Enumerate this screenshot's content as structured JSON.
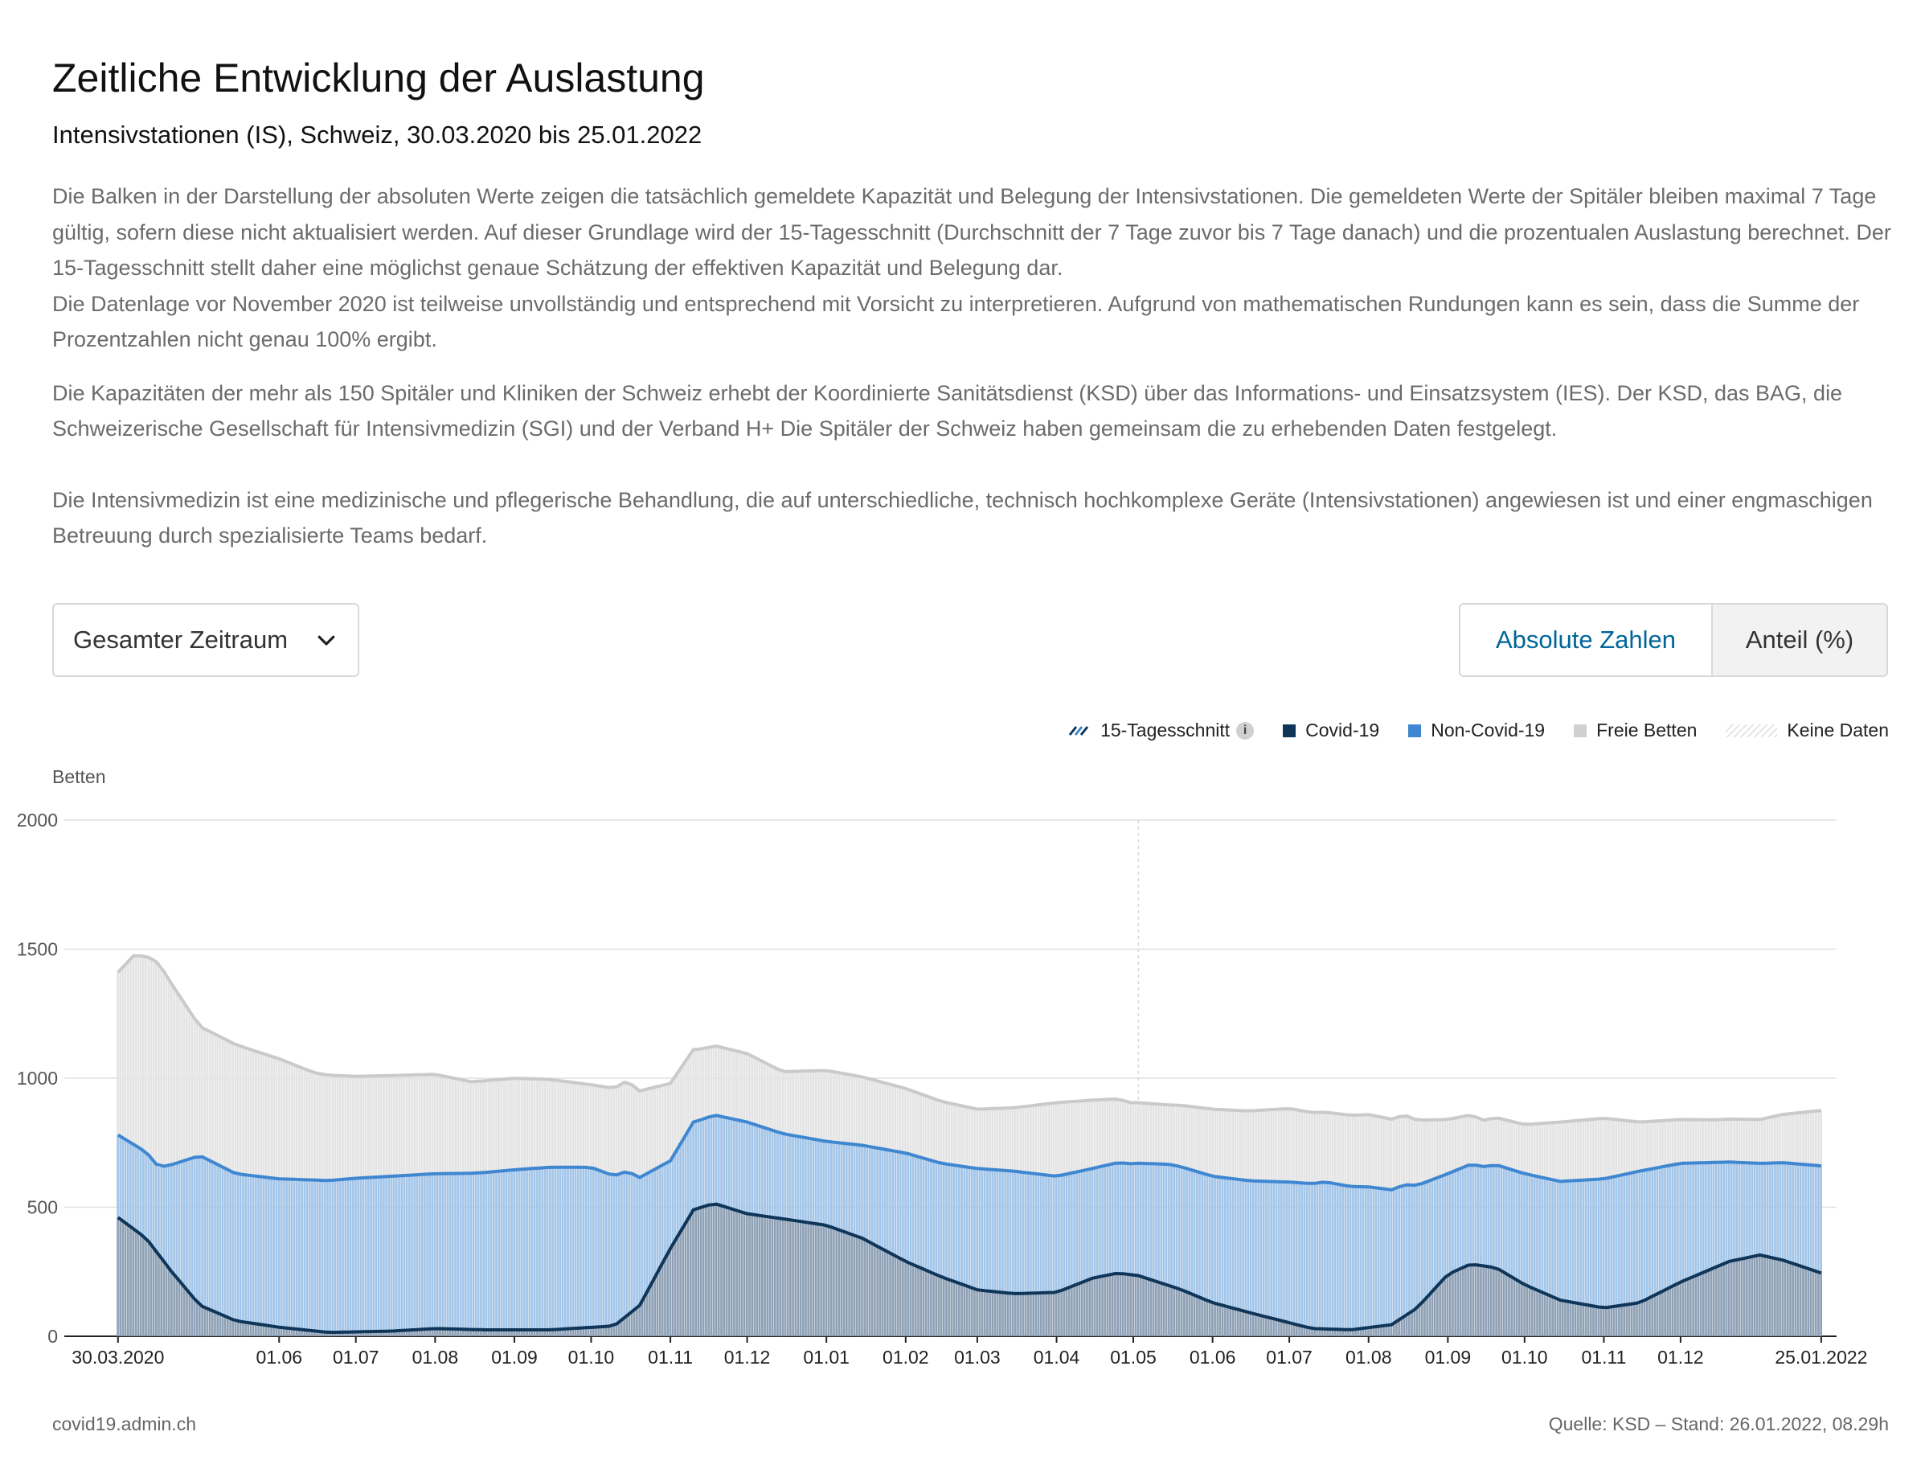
{
  "header": {
    "title": "Zeitliche Entwicklung der Auslastung",
    "subtitle": "Intensivstationen (IS), Schweiz, 30.03.2020 bis 25.01.2022"
  },
  "description": {
    "p1a": "Die Balken in der Darstellung der absoluten Werte zeigen die tatsächlich gemeldete Kapazität und Belegung der Intensivstationen. Die gemeldeten Werte der Spitäler bleiben maximal 7 Tage gültig, sofern diese nicht aktualisiert werden. Auf dieser Grundlage wird der 15-Tagesschnitt (Durchschnitt der 7 Tage zuvor bis 7 Tage danach) und die prozentualen Auslastung berechnet. Der 15-Tagesschnitt stellt daher eine möglichst genaue Schätzung der effektiven Kapazität und Belegung dar.",
    "p1b": "Die Datenlage vor November 2020 ist teilweise unvollständig und entsprechend mit Vorsicht zu interpretieren. Aufgrund von mathematischen Rundungen kann es sein, dass die Summe der Prozentzahlen nicht genau 100% ergibt.",
    "p2": "Die Kapazitäten der mehr als 150 Spitäler und Kliniken der Schweiz erhebt der Koordinierte Sanitätsdienst (KSD) über das Informations- und Einsatzsystem (IES). Der KSD, das BAG, die Schweizerische Gesellschaft für Intensivmedizin (SGI) und der Verband H+ Die Spitäler der Schweiz haben gemeinsam die zu erhebenden Daten festgelegt.",
    "p3": "Die Intensivmedizin ist eine medizinische und pflegerische Behandlung, die auf unterschiedliche, technisch hochkomplexe Geräte (Intensivstationen) angewiesen ist und einer engmaschigen Betreuung durch spezialisierte Teams bedarf."
  },
  "controls": {
    "period_select": "Gesamter Zeitraum",
    "period_icon": "chevron-down-icon",
    "toggle_absolute": "Absolute Zahlen",
    "toggle_share": "Anteil (%)",
    "active_toggle": "Absolute Zahlen"
  },
  "legend": {
    "avg": "15-Tagesschnitt",
    "info_icon": "info-icon",
    "covid": "Covid-19",
    "noncovid": "Non-Covid-19",
    "free": "Freie Betten",
    "nodata": "Keine Daten"
  },
  "colors": {
    "covid": "#0f3659",
    "covid_bar": "#8ea0b5",
    "noncovid": "#3f87d0",
    "noncovid_bar": "#a3c5e8",
    "free_bar": "#e4e4e4",
    "free_line": "#cacaca",
    "grid": "#e0e0e0",
    "accent": "#006699"
  },
  "chart_data": {
    "type": "area",
    "ylabel": "Betten",
    "y_ticks": [
      0,
      500,
      1000,
      1500,
      2000
    ],
    "ylim": [
      0,
      2000
    ],
    "x_range": [
      "2020-03-09",
      "2022-01-31"
    ],
    "x_ticks": [
      {
        "date": "2020-03-30",
        "label": "30.03.2020"
      },
      {
        "date": "2020-06-01",
        "label": "01.06"
      },
      {
        "date": "2020-07-01",
        "label": "01.07"
      },
      {
        "date": "2020-08-01",
        "label": "01.08"
      },
      {
        "date": "2020-09-01",
        "label": "01.09"
      },
      {
        "date": "2020-10-01",
        "label": "01.10"
      },
      {
        "date": "2020-11-01",
        "label": "01.11"
      },
      {
        "date": "2020-12-01",
        "label": "01.12"
      },
      {
        "date": "2021-01-01",
        "label": "01.01"
      },
      {
        "date": "2021-02-01",
        "label": "01.02"
      },
      {
        "date": "2021-03-01",
        "label": "01.03"
      },
      {
        "date": "2021-04-01",
        "label": "01.04"
      },
      {
        "date": "2021-05-01",
        "label": "01.05"
      },
      {
        "date": "2021-06-01",
        "label": "01.06"
      },
      {
        "date": "2021-07-01",
        "label": "01.07"
      },
      {
        "date": "2021-08-01",
        "label": "01.08"
      },
      {
        "date": "2021-09-01",
        "label": "01.09"
      },
      {
        "date": "2021-10-01",
        "label": "01.10"
      },
      {
        "date": "2021-11-01",
        "label": "01.11"
      },
      {
        "date": "2021-12-01",
        "label": "01.12"
      },
      {
        "date": "2022-01-25",
        "label": "25.01.2022"
      }
    ],
    "dashed_marker_date": "2021-05-03",
    "series": [
      {
        "name": "Covid-19",
        "values": [
          [
            "2020-03-30",
            460
          ],
          [
            "2020-04-10",
            380
          ],
          [
            "2020-04-20",
            250
          ],
          [
            "2020-05-01",
            120
          ],
          [
            "2020-05-15",
            60
          ],
          [
            "2020-06-01",
            35
          ],
          [
            "2020-06-20",
            15
          ],
          [
            "2020-07-15",
            20
          ],
          [
            "2020-08-01",
            30
          ],
          [
            "2020-08-20",
            25
          ],
          [
            "2020-09-15",
            25
          ],
          [
            "2020-10-10",
            40
          ],
          [
            "2020-10-20",
            120
          ],
          [
            "2020-11-01",
            340
          ],
          [
            "2020-11-10",
            490
          ],
          [
            "2020-11-18",
            515
          ],
          [
            "2020-12-01",
            475
          ],
          [
            "2020-12-15",
            455
          ],
          [
            "2021-01-01",
            430
          ],
          [
            "2021-01-15",
            380
          ],
          [
            "2021-02-01",
            290
          ],
          [
            "2021-02-15",
            230
          ],
          [
            "2021-03-01",
            180
          ],
          [
            "2021-03-15",
            165
          ],
          [
            "2021-04-01",
            170
          ],
          [
            "2021-04-15",
            225
          ],
          [
            "2021-04-25",
            245
          ],
          [
            "2021-05-03",
            235
          ],
          [
            "2021-05-20",
            180
          ],
          [
            "2021-06-01",
            130
          ],
          [
            "2021-06-20",
            80
          ],
          [
            "2021-07-10",
            30
          ],
          [
            "2021-07-25",
            25
          ],
          [
            "2021-08-10",
            45
          ],
          [
            "2021-08-20",
            110
          ],
          [
            "2021-09-01",
            240
          ],
          [
            "2021-09-10",
            280
          ],
          [
            "2021-09-20",
            265
          ],
          [
            "2021-10-01",
            200
          ],
          [
            "2021-10-15",
            140
          ],
          [
            "2021-11-01",
            110
          ],
          [
            "2021-11-15",
            130
          ],
          [
            "2021-12-01",
            210
          ],
          [
            "2021-12-20",
            290
          ],
          [
            "2022-01-01",
            315
          ],
          [
            "2022-01-10",
            295
          ],
          [
            "2022-01-25",
            245
          ]
        ]
      },
      {
        "name": "Non-Covid-19",
        "values": [
          [
            "2020-03-30",
            320
          ],
          [
            "2020-04-15",
            340
          ],
          [
            "2020-05-01",
            580
          ],
          [
            "2020-05-15",
            570
          ],
          [
            "2020-06-01",
            575
          ],
          [
            "2020-06-15",
            585
          ],
          [
            "2020-07-01",
            595
          ],
          [
            "2020-07-15",
            600
          ],
          [
            "2020-08-01",
            600
          ],
          [
            "2020-08-15",
            605
          ],
          [
            "2020-09-01",
            620
          ],
          [
            "2020-09-15",
            630
          ],
          [
            "2020-10-01",
            620
          ],
          [
            "2020-10-15",
            560
          ],
          [
            "2020-11-01",
            340
          ],
          [
            "2020-11-15",
            340
          ],
          [
            "2020-12-01",
            355
          ],
          [
            "2020-12-15",
            330
          ],
          [
            "2021-01-01",
            325
          ],
          [
            "2021-01-15",
            360
          ],
          [
            "2021-02-01",
            420
          ],
          [
            "2021-02-15",
            440
          ],
          [
            "2021-03-01",
            470
          ],
          [
            "2021-03-15",
            475
          ],
          [
            "2021-04-01",
            450
          ],
          [
            "2021-04-15",
            425
          ],
          [
            "2021-05-01",
            430
          ],
          [
            "2021-05-15",
            470
          ],
          [
            "2021-06-01",
            490
          ],
          [
            "2021-06-15",
            510
          ],
          [
            "2021-07-01",
            545
          ],
          [
            "2021-07-15",
            570
          ],
          [
            "2021-08-01",
            545
          ],
          [
            "2021-08-15",
            510
          ],
          [
            "2021-09-01",
            390
          ],
          [
            "2021-09-15",
            385
          ],
          [
            "2021-10-01",
            430
          ],
          [
            "2021-10-15",
            460
          ],
          [
            "2021-11-01",
            500
          ],
          [
            "2021-11-15",
            510
          ],
          [
            "2021-12-01",
            460
          ],
          [
            "2021-12-20",
            385
          ],
          [
            "2022-01-01",
            355
          ],
          [
            "2022-01-25",
            415
          ]
        ]
      },
      {
        "name": "Freie Betten",
        "values": [
          [
            "2020-03-30",
            630
          ],
          [
            "2020-04-05",
            730
          ],
          [
            "2020-04-15",
            790
          ],
          [
            "2020-05-01",
            500
          ],
          [
            "2020-05-15",
            500
          ],
          [
            "2020-06-01",
            465
          ],
          [
            "2020-06-15",
            415
          ],
          [
            "2020-07-01",
            395
          ],
          [
            "2020-07-15",
            390
          ],
          [
            "2020-08-01",
            385
          ],
          [
            "2020-08-15",
            355
          ],
          [
            "2020-09-01",
            355
          ],
          [
            "2020-09-15",
            340
          ],
          [
            "2020-10-01",
            320
          ],
          [
            "2020-10-15",
            350
          ],
          [
            "2020-11-01",
            300
          ],
          [
            "2020-11-15",
            270
          ],
          [
            "2020-12-01",
            265
          ],
          [
            "2020-12-15",
            240
          ],
          [
            "2021-01-01",
            275
          ],
          [
            "2021-01-15",
            265
          ],
          [
            "2021-02-01",
            250
          ],
          [
            "2021-02-15",
            240
          ],
          [
            "2021-03-01",
            230
          ],
          [
            "2021-03-15",
            245
          ],
          [
            "2021-04-01",
            285
          ],
          [
            "2021-04-15",
            265
          ],
          [
            "2021-05-01",
            235
          ],
          [
            "2021-05-15",
            230
          ],
          [
            "2021-06-01",
            260
          ],
          [
            "2021-06-15",
            270
          ],
          [
            "2021-07-01",
            285
          ],
          [
            "2021-07-15",
            270
          ],
          [
            "2021-08-01",
            280
          ],
          [
            "2021-08-15",
            270
          ],
          [
            "2021-09-01",
            210
          ],
          [
            "2021-09-15",
            180
          ],
          [
            "2021-10-01",
            190
          ],
          [
            "2021-10-15",
            230
          ],
          [
            "2021-11-01",
            235
          ],
          [
            "2021-11-15",
            190
          ],
          [
            "2021-12-01",
            170
          ],
          [
            "2021-12-15",
            165
          ],
          [
            "2022-01-01",
            170
          ],
          [
            "2022-01-25",
            215
          ]
        ]
      }
    ]
  },
  "footer": {
    "site": "covid19.admin.ch",
    "source": "Quelle: KSD – Stand: 26.01.2022, 08.29h"
  }
}
